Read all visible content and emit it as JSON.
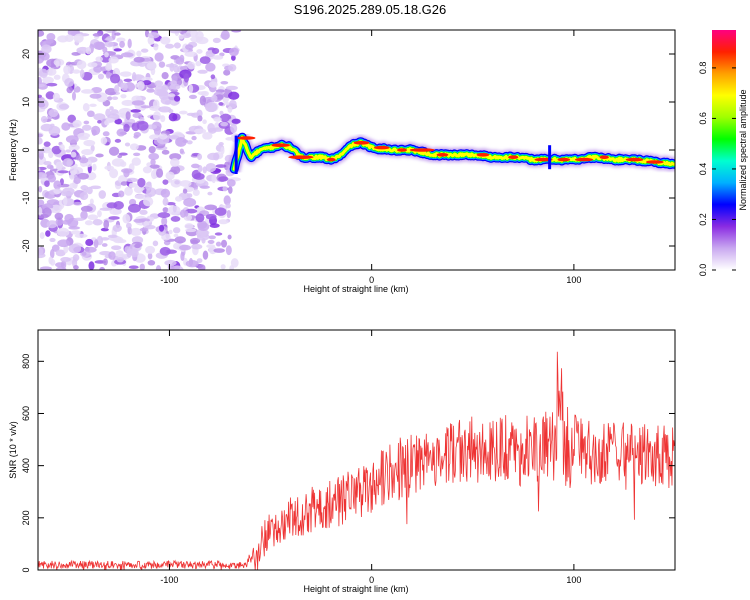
{
  "title": "S196.2025.289.05.18.G26",
  "chart_data": [
    {
      "type": "heatmap",
      "id": "spectrogram",
      "xlabel": "Height of straight line (km)",
      "ylabel": "Frequency (Hz)",
      "xlim": [
        -165,
        150
      ],
      "ylim": [
        -25,
        25
      ],
      "xticks": [
        -100,
        0,
        100
      ],
      "yticks": [
        -20,
        -10,
        0,
        10,
        20
      ],
      "colorbar": {
        "label": "Normalized spectral amplitude",
        "range": [
          0.0,
          0.95
        ],
        "ticks": [
          0.0,
          0.2,
          0.4,
          0.6,
          0.8
        ],
        "colors": [
          "#ffffff",
          "#c9a8f0",
          "#8a2be2",
          "#0000ff",
          "#00b0ff",
          "#00ffd0",
          "#00ff00",
          "#a0ff00",
          "#ffff00",
          "#ffa000",
          "#ff2000",
          "#ff0080"
        ]
      },
      "noise_region_x": [
        -165,
        -66
      ],
      "signal_track": {
        "x": [
          -68,
          -64,
          -60,
          -55,
          -50,
          -45,
          -40,
          -35,
          -30,
          -25,
          -20,
          -15,
          -10,
          -5,
          0,
          10,
          20,
          30,
          40,
          50,
          60,
          70,
          80,
          90,
          100,
          110,
          120,
          130,
          140,
          150
        ],
        "freq_hz": [
          -4,
          2.5,
          -1.5,
          0,
          0.5,
          1,
          0.5,
          -1.5,
          -1.5,
          -1.5,
          -2,
          -1,
          1,
          1.5,
          0.5,
          0,
          0,
          -1,
          -1,
          -1,
          -1.5,
          -1.5,
          -2,
          -2,
          -2,
          -1.5,
          -2,
          -2,
          -2.5,
          -3
        ]
      }
    },
    {
      "type": "line",
      "id": "snr",
      "xlabel": "Height of straight line (km)",
      "ylabel": "SNR (10 * v/v)",
      "xlim": [
        -165,
        150
      ],
      "ylim": [
        0,
        920
      ],
      "xticks": [
        -100,
        0,
        100
      ],
      "yticks": [
        0,
        200,
        400,
        600,
        800
      ],
      "color": "#ee3333",
      "series": [
        {
          "name": "SNR",
          "x": [
            -165,
            -140,
            -110,
            -80,
            -62,
            -55,
            -50,
            -45,
            -40,
            -35,
            -30,
            -25,
            -20,
            -15,
            -10,
            -5,
            0,
            10,
            20,
            30,
            40,
            50,
            60,
            70,
            80,
            85,
            90,
            93,
            95,
            100,
            110,
            120,
            130,
            140,
            150
          ],
          "y": [
            20,
            20,
            20,
            20,
            20,
            100,
            150,
            160,
            200,
            210,
            230,
            250,
            260,
            270,
            300,
            300,
            330,
            380,
            400,
            430,
            450,
            460,
            460,
            470,
            470,
            470,
            460,
            560,
            480,
            460,
            450,
            450,
            440,
            440,
            430
          ],
          "noise_amplitude": [
            15,
            15,
            15,
            15,
            15,
            70,
            70,
            70,
            80,
            80,
            90,
            90,
            100,
            100,
            100,
            110,
            110,
            120,
            120,
            120,
            120,
            130,
            130,
            130,
            130,
            140,
            160,
            300,
            160,
            140,
            120,
            120,
            120,
            120,
            120
          ]
        }
      ]
    }
  ]
}
